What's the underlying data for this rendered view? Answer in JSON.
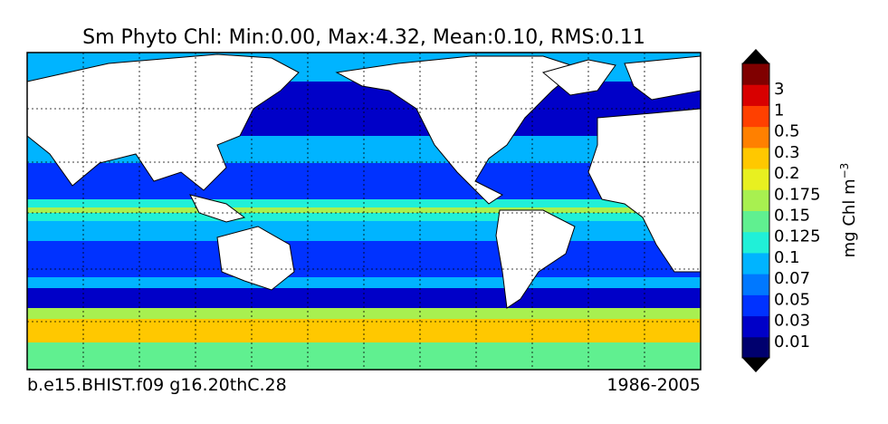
{
  "title": "Sm Phyto Chl: Min:0.00, Max:4.32, Mean:0.10, RMS:0.11",
  "footer_left": "b.e15.BHIST.f09 g16.20thC.28",
  "footer_right": "1986-2005",
  "colorbar": {
    "label": "mg Chl m",
    "label_exponent": "−3",
    "ticks": [
      "0.01",
      "0.03",
      "0.05",
      "0.07",
      "0.1",
      "0.125",
      "0.15",
      "0.175",
      "0.2",
      "0.3",
      "0.5",
      "1",
      "3"
    ],
    "colors": [
      "#00006e",
      "#0000c8",
      "#0032ff",
      "#0078ff",
      "#00b4ff",
      "#20f0d8",
      "#60f090",
      "#a8f050",
      "#e8f020",
      "#ffc800",
      "#ff8000",
      "#ff4000",
      "#d80000",
      "#800000"
    ],
    "extend_color": "#000000"
  }
}
